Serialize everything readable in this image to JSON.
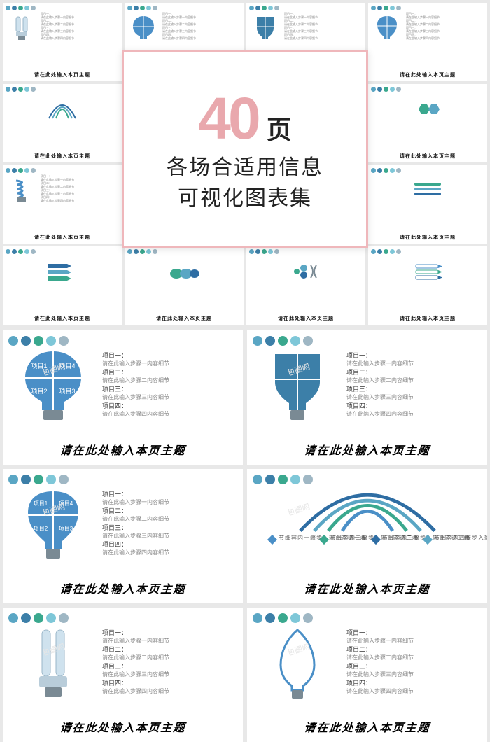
{
  "palette": {
    "dots": [
      "#5aa6c4",
      "#3c7fa8",
      "#3aa88e",
      "#7ec7d8",
      "#9fb7c4"
    ],
    "accent_blue": "#4a8fc7",
    "accent_blue_dark": "#2e6da3",
    "accent_teal": "#3aa88e",
    "accent_grey": "#9fb7c4",
    "promo_border": "#efb7bb",
    "promo_num": "#e9a8ad",
    "bg": "#e8e8e8"
  },
  "promo": {
    "number": "40",
    "page_char": "页",
    "line1": "各场合适用信息",
    "line2": "可视化图表集"
  },
  "common": {
    "title": "请在此处输入本页主题",
    "item_labels": [
      "项目一：",
      "项目二：",
      "项目三：",
      "项目四："
    ],
    "item_desc": [
      "请在此输入步骤一内容细节",
      "请在此输入步骤二内容细节",
      "请在此输入步骤三内容细节",
      "请在此输入步骤四内容细节"
    ],
    "bulb_segments": [
      "项目1",
      "项目2",
      "项目3",
      "项目4"
    ]
  },
  "arcs": {
    "columns": [
      {
        "head": "骤一",
        "body": "请在此输入步\n骤一内容细节",
        "color": "#4a8fc7"
      },
      {
        "head": "骤二",
        "body": "请在此输入步\n骤二内容细节",
        "color": "#3aa88e"
      },
      {
        "head": "骤三",
        "body": "请在此输入步\n骤三内容细节",
        "color": "#2e6da3"
      },
      {
        "head": "骤四",
        "body": "请在此输入步\n骤四内容细节",
        "color": "#5aa6c4"
      }
    ]
  },
  "mini_icons": [
    "cfl",
    "puzzle-bulb",
    "puzzle-bulb2",
    "puzzle-bulb3",
    "arcs",
    "puzzle-bulb",
    "bulb-outline",
    "hex",
    "spiral",
    "bars-v",
    "bulb-glow",
    "bars-h",
    "arrows",
    "ovals",
    "dots-bracket",
    "bars-pointer"
  ],
  "watermark": "包图网"
}
